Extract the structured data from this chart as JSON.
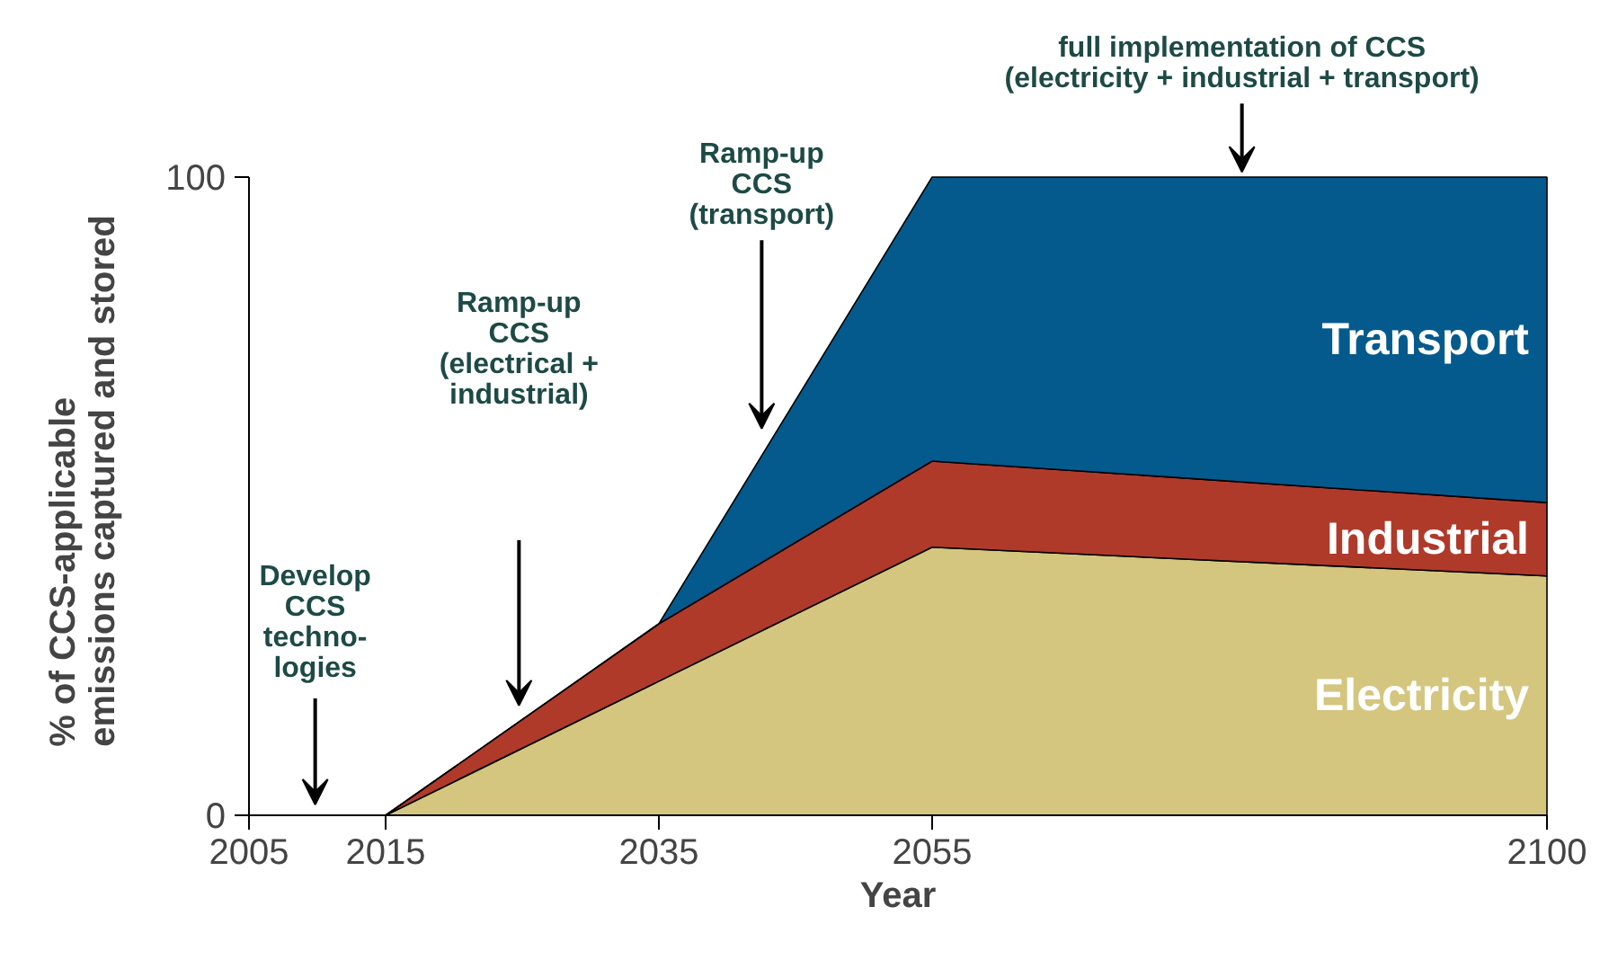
{
  "chart_data": {
    "type": "area",
    "stacked": true,
    "xlabel": "Year",
    "ylabel": "% of CCS-applicable\nemissions captured and stored",
    "x": [
      2015,
      2035,
      2055,
      2100
    ],
    "series": [
      {
        "name": "Electricity",
        "color": "#d4c67e",
        "values": [
          0,
          21,
          42,
          37.5
        ]
      },
      {
        "name": "Industrial",
        "color": "#b03a2a",
        "values": [
          0,
          9,
          13.5,
          11.5
        ]
      },
      {
        "name": "Transport",
        "color": "#045a8d",
        "values": [
          0,
          0,
          44.5,
          51
        ]
      }
    ],
    "xlim": [
      2005,
      2100
    ],
    "xticks": [
      2005,
      2015,
      2035,
      2055,
      2100
    ],
    "ylim": [
      0,
      100
    ],
    "yticks": [
      0,
      100
    ],
    "annotations": [
      "Develop\nCCS\ntechno-\nlogies",
      "Ramp-up\nCCS\n(electrical +\nindustrial)",
      "Ramp-up\nCCS\n(transport)",
      "full implementation of CCS\n(electricity + industrial + transport)"
    ]
  }
}
